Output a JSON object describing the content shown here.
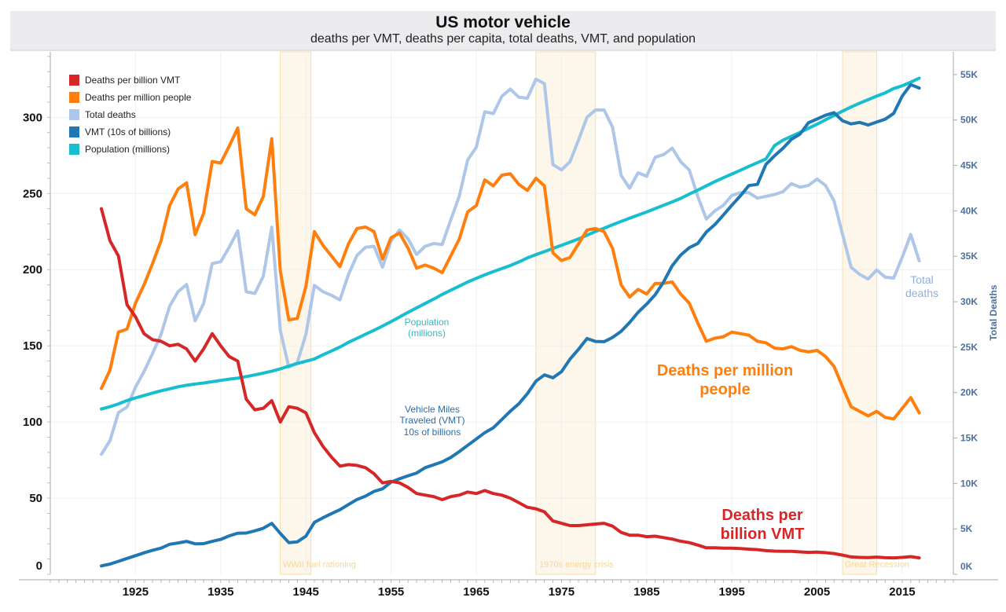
{
  "header": {
    "title": "US motor vehicle",
    "subtitle": "deaths per VMT, deaths per capita, total deaths, VMT, and population"
  },
  "chart_data": {
    "type": "line",
    "title": "US motor vehicle",
    "subtitle": "deaths per VMT, deaths per capita, total deaths, VMT, and population",
    "xlabel": "",
    "ylabel": "",
    "y2label": "Total Deaths",
    "xlim": [
      1915,
      2021
    ],
    "ylim": [
      0,
      343
    ],
    "y2lim": [
      0,
      57500
    ],
    "grid": true,
    "legend_position": "top-left",
    "x_ticks": [
      "1925",
      "1935",
      "1945",
      "1955",
      "1965",
      "1975",
      "1985",
      "1995",
      "2005",
      "2015"
    ],
    "y_ticks": [
      "0",
      "50",
      "100",
      "150",
      "200",
      "250",
      "300"
    ],
    "y2_ticks": [
      "0K",
      "5K",
      "10K",
      "15K",
      "20K",
      "25K",
      "30K",
      "35K",
      "40K",
      "45K",
      "50K",
      "55K"
    ],
    "x": [
      1921,
      1922,
      1923,
      1924,
      1925,
      1926,
      1927,
      1928,
      1929,
      1930,
      1931,
      1932,
      1933,
      1934,
      1935,
      1936,
      1937,
      1938,
      1939,
      1940,
      1941,
      1942,
      1943,
      1944,
      1945,
      1946,
      1947,
      1948,
      1949,
      1950,
      1951,
      1952,
      1953,
      1954,
      1955,
      1956,
      1957,
      1958,
      1959,
      1960,
      1961,
      1962,
      1963,
      1964,
      1965,
      1966,
      1967,
      1968,
      1969,
      1970,
      1971,
      1972,
      1973,
      1974,
      1975,
      1976,
      1977,
      1978,
      1979,
      1980,
      1981,
      1982,
      1983,
      1984,
      1985,
      1986,
      1987,
      1988,
      1989,
      1990,
      1991,
      1992,
      1993,
      1994,
      1995,
      1996,
      1997,
      1998,
      1999,
      2000,
      2001,
      2002,
      2003,
      2004,
      2005,
      2006,
      2007,
      2008,
      2009,
      2010,
      2011,
      2012,
      2013,
      2014,
      2015,
      2016,
      2017
    ],
    "series": [
      {
        "name": "Deaths per billion VMT",
        "axis": "left",
        "color": "#d62728",
        "values": [
          240,
          219,
          209,
          177,
          169,
          158,
          154,
          153,
          150,
          151,
          148,
          140,
          148,
          158,
          150,
          143,
          140,
          115,
          108,
          109,
          114,
          100,
          110,
          109,
          106,
          93,
          84,
          77,
          71,
          72,
          71.5,
          70,
          66,
          60,
          61,
          60,
          57,
          53,
          52,
          51,
          49,
          51,
          52,
          54,
          53,
          55,
          53,
          52,
          50,
          47,
          44,
          43,
          41,
          35,
          33.5,
          32,
          32,
          32.5,
          33,
          33.5,
          31.6,
          27.5,
          25.7,
          25.7,
          24.7,
          25,
          24.1,
          23.1,
          21.7,
          20.8,
          19.2,
          17.4,
          17.4,
          17.2,
          17.2,
          16.9,
          16.5,
          16.2,
          15.5,
          15.2,
          15.1,
          15.1,
          14.7,
          14.4,
          14.6,
          14.2,
          13.6,
          12.6,
          11.4,
          11.1,
          11,
          11.3,
          10.9,
          10.8,
          11.1,
          11.6,
          10.8
        ]
      },
      {
        "name": "Deaths per million people",
        "axis": "left",
        "color": "#ff7f0e",
        "values": [
          122,
          134,
          159,
          161,
          178,
          190,
          204,
          219,
          242,
          253,
          257,
          223,
          237,
          271,
          270,
          281,
          293,
          240,
          236,
          248,
          286,
          199,
          167,
          168,
          189,
          225,
          216,
          209,
          202,
          217,
          227,
          228,
          225,
          207,
          221,
          224,
          214,
          201,
          203,
          201,
          198,
          209,
          220,
          238,
          242,
          259,
          255,
          262,
          263,
          256,
          252,
          260,
          255,
          211,
          206,
          208,
          217,
          226,
          227,
          225,
          214,
          190,
          182,
          187,
          184,
          191,
          191,
          192,
          184,
          178,
          165,
          153,
          155,
          156,
          159,
          158,
          157,
          153,
          152,
          148.5,
          148,
          149.5,
          147,
          146,
          147,
          143,
          136.5,
          123,
          110,
          107,
          104,
          107,
          103,
          102,
          109,
          116,
          106
        ]
      },
      {
        "name": "Total deaths",
        "axis": "right",
        "color": "#aec7e8",
        "values": [
          13200,
          14700,
          17800,
          18400,
          20600,
          22300,
          24300,
          26400,
          29500,
          31100,
          31900,
          27900,
          29800,
          34200,
          34400,
          36000,
          37800,
          31100,
          30900,
          32800,
          38200,
          26800,
          22800,
          23300,
          26400,
          31800,
          31100,
          30700,
          30200,
          33000,
          35100,
          36000,
          36100,
          33800,
          36700,
          37900,
          36900,
          35200,
          36100,
          36400,
          36300,
          39000,
          41600,
          45600,
          47000,
          50900,
          50700,
          52600,
          53400,
          52500,
          52400,
          54500,
          54000,
          45100,
          44500,
          45400,
          47800,
          50300,
          51100,
          51100,
          49200,
          43900,
          42500,
          44200,
          43800,
          45900,
          46200,
          46900,
          45400,
          44500,
          41600,
          39100,
          40000,
          40600,
          41700,
          42000,
          42000,
          41400,
          41600,
          41800,
          42100,
          43000,
          42600,
          42800,
          43500,
          42800,
          41100,
          37400,
          33800,
          33000,
          32500,
          33500,
          32700,
          32600,
          34900,
          37400,
          34500
        ]
      },
      {
        "name": "VMT (10s of billions)",
        "axis": "left",
        "color": "#1f77b4",
        "values": [
          5.5,
          6.7,
          8.5,
          10.4,
          12.2,
          14.1,
          15.8,
          17.2,
          19.7,
          20.6,
          21.6,
          20,
          20.1,
          21.6,
          22.9,
          25.2,
          27,
          27.1,
          28.5,
          30.2,
          33.4,
          26.8,
          20.8,
          21.3,
          25,
          34.1,
          37.1,
          39.8,
          42.4,
          45.8,
          49.1,
          51.3,
          54.4,
          56.1,
          60.5,
          62.7,
          64.7,
          66.5,
          70,
          71.9,
          73.8,
          76.7,
          80.5,
          84.7,
          88.8,
          93,
          96.2,
          101.6,
          107.1,
          112,
          118.6,
          126.8,
          130.9,
          129,
          133,
          141.2,
          147.7,
          154.8,
          152.9,
          152.7,
          155.5,
          159.5,
          165.3,
          172,
          177.4,
          183.5,
          192.1,
          202.6,
          209.6,
          214.4,
          217.2,
          224.7,
          229.6,
          235.8,
          242.3,
          248.4,
          255.2,
          256,
          269.1,
          274.7,
          279.7,
          285.6,
          289,
          296.5,
          298.9,
          301.4,
          303.1,
          297.7,
          295.7,
          296.7,
          295,
          296.9,
          298.8,
          302.6,
          314,
          321.5,
          319.2
        ]
      },
      {
        "name": "Population (millions)",
        "axis": "left",
        "color": "#17becf",
        "values": [
          108.5,
          110,
          111.9,
          114.1,
          115.8,
          117.4,
          119,
          120.5,
          121.8,
          123.1,
          124.1,
          124.9,
          125.6,
          126.4,
          127.3,
          128.1,
          128.8,
          129.8,
          130.9,
          132.1,
          133.4,
          134.9,
          136.7,
          138.4,
          139.9,
          141.4,
          144.1,
          146.6,
          149.2,
          152.3,
          154.9,
          157.6,
          160.2,
          163,
          165.9,
          168.9,
          172,
          174.9,
          177.8,
          180.7,
          183.7,
          186.5,
          189.2,
          191.9,
          194.3,
          196.6,
          198.7,
          200.7,
          202.7,
          205.1,
          207.7,
          209.9,
          211.9,
          213.9,
          216,
          218,
          220.2,
          222.6,
          225.1,
          227.2,
          229.5,
          231.7,
          233.8,
          235.8,
          237.9,
          240.1,
          242.3,
          244.5,
          246.8,
          249.6,
          252.2,
          255,
          257.8,
          260.3,
          262.8,
          265.2,
          267.8,
          270.2,
          272.7,
          281.4,
          285,
          287.6,
          290.1,
          292.8,
          295.5,
          298.4,
          301.2,
          304.1,
          306.8,
          309.3,
          311.6,
          313.9,
          316.1,
          318.9,
          320.7,
          323.1,
          325.7
        ]
      }
    ],
    "bands": [
      {
        "label": "WWII fuel rationing",
        "from": 1942,
        "to": 1945.6
      },
      {
        "label": "1970s energy crisis",
        "from": 1972,
        "to": 1979
      },
      {
        "label": "Great Recession",
        "from": 2008,
        "to": 2012
      }
    ],
    "annotations": {
      "population": "Population\n(millions)",
      "vmt": "Vehicle Miles\nTraveled (VMT)\n10s of billions",
      "deaths_per_million": "Deaths per million\npeople",
      "deaths_per_vmt": "Deaths per\nbillion VMT",
      "total_deaths": "Total\ndeaths"
    },
    "band_color": "#fdf6ea",
    "band_border": "#f6dfa4",
    "right_axis_color": "#4f6f9f"
  }
}
